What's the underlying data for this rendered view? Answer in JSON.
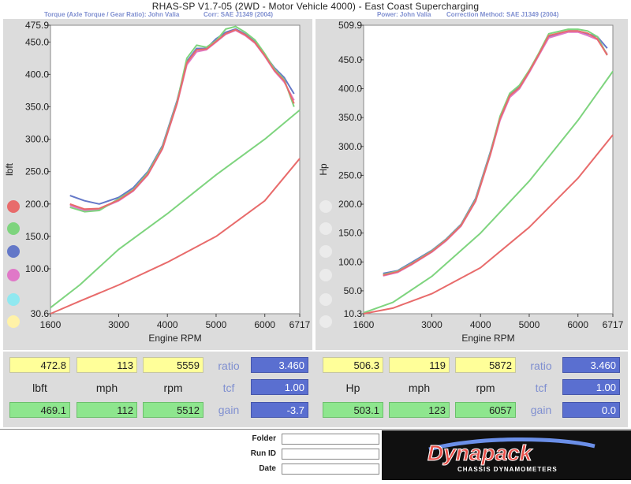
{
  "header": {
    "title": "RHAS-SP V1.7-05   (2WD - Motor Vehicle 4000) - East Coast Supercharging",
    "left_sub1": "Torque (Axle Torque / Gear Ratio): John Valia",
    "left_sub2": "Corr: SAE J1349 (2004)",
    "right_sub1": "Power: John Valia",
    "right_sub2": "Correction Method: SAE J1349 (2004)"
  },
  "colors": {
    "red": "#e86b6b",
    "green": "#7ed47e",
    "blue": "#6478c8",
    "magenta": "#e078c8",
    "cyan": "#90e8f0",
    "yellow": "#fff2a8",
    "panel_bg": "#dcdcdc"
  },
  "legend_dots_left": [
    "red",
    "green",
    "blue",
    "magenta",
    "cyan",
    "yellow"
  ],
  "chart_data": [
    {
      "type": "line",
      "xlabel": "Engine RPM",
      "ylabel": "lbft",
      "xlim": [
        1600,
        6717
      ],
      "ylim": [
        30.6,
        475.9
      ],
      "x_ticks": [
        "1600",
        "3000",
        "4000",
        "5000",
        "6000",
        "6717"
      ],
      "x_tick_values": [
        1600,
        3000,
        4000,
        5000,
        6000,
        6717
      ],
      "y_ticks": [
        "30.6",
        "100.0",
        "150.0",
        "200.0",
        "250.0",
        "300.0",
        "350.0",
        "400.0",
        "450.0",
        "475.9"
      ],
      "y_tick_values": [
        30.6,
        100,
        150,
        200,
        250,
        300,
        350,
        400,
        450,
        475.9
      ],
      "series": [
        {
          "color": "blue",
          "x": [
            2000,
            2300,
            2600,
            3000,
            3300,
            3600,
            3900,
            4200,
            4400,
            4600,
            4800,
            5000,
            5200,
            5400,
            5600,
            5800,
            6000,
            6200,
            6400,
            6600
          ],
          "y": [
            213,
            205,
            200,
            210,
            225,
            250,
            290,
            360,
            420,
            440,
            440,
            455,
            465,
            470,
            462,
            450,
            430,
            410,
            395,
            370
          ]
        },
        {
          "color": "magenta",
          "x": [
            2000,
            2300,
            2600,
            3000,
            3300,
            3600,
            3900,
            4200,
            4400,
            4600,
            4800,
            5000,
            5200,
            5400,
            5600,
            5800,
            6000,
            6200,
            6400,
            6600
          ],
          "y": [
            198,
            190,
            192,
            205,
            220,
            245,
            285,
            355,
            415,
            435,
            438,
            450,
            462,
            468,
            460,
            448,
            428,
            405,
            388,
            360
          ]
        },
        {
          "color": "green",
          "x": [
            2000,
            2300,
            2600,
            3000,
            3300,
            3600,
            3900,
            4200,
            4400,
            4600,
            4800,
            5000,
            5200,
            5400,
            5600,
            5800,
            6000,
            6200,
            6400,
            6600
          ],
          "y": [
            195,
            188,
            190,
            208,
            222,
            248,
            288,
            358,
            425,
            445,
            442,
            452,
            470,
            474,
            465,
            453,
            432,
            408,
            392,
            350
          ]
        },
        {
          "color": "red",
          "x": [
            2000,
            2300,
            2600,
            3000,
            3300,
            3600,
            3900,
            4200,
            4400,
            4600,
            4800,
            5000,
            5200,
            5400,
            5600,
            5800,
            6000,
            6200,
            6400,
            6600
          ],
          "y": [
            200,
            192,
            193,
            206,
            221,
            246,
            286,
            356,
            418,
            438,
            439,
            451,
            463,
            469,
            461,
            449,
            429,
            406,
            390,
            355
          ]
        },
        {
          "color": "green",
          "x": [
            1600,
            2200,
            3000,
            4000,
            5000,
            6000,
            6717
          ],
          "y": [
            40,
            75,
            130,
            185,
            245,
            300,
            345
          ]
        },
        {
          "color": "red",
          "x": [
            1600,
            2200,
            3000,
            4000,
            5000,
            6000,
            6717
          ],
          "y": [
            30.6,
            50,
            75,
            110,
            150,
            205,
            270
          ]
        }
      ]
    },
    {
      "type": "line",
      "xlabel": "Engine RPM",
      "ylabel": "Hp",
      "xlim": [
        1600,
        6717
      ],
      "ylim": [
        10.3,
        509.9
      ],
      "x_ticks": [
        "1600",
        "3000",
        "4000",
        "5000",
        "6000",
        "6717"
      ],
      "x_tick_values": [
        1600,
        3000,
        4000,
        5000,
        6000,
        6717
      ],
      "y_ticks": [
        "10.3",
        "50.0",
        "100.0",
        "150.0",
        "200.0",
        "250.0",
        "300.0",
        "350.0",
        "400.0",
        "450.0",
        "509.9"
      ],
      "y_tick_values": [
        10.3,
        50,
        100,
        150,
        200,
        250,
        300,
        350,
        400,
        450,
        509.9
      ],
      "series": [
        {
          "color": "blue",
          "x": [
            2000,
            2300,
            2600,
            3000,
            3300,
            3600,
            3900,
            4200,
            4400,
            4600,
            4800,
            5000,
            5200,
            5400,
            5600,
            5800,
            6000,
            6200,
            6400,
            6600
          ],
          "y": [
            80,
            85,
            100,
            120,
            140,
            165,
            210,
            290,
            350,
            390,
            405,
            430,
            460,
            490,
            495,
            500,
            500,
            495,
            490,
            470
          ]
        },
        {
          "color": "magenta",
          "x": [
            2000,
            2300,
            2600,
            3000,
            3300,
            3600,
            3900,
            4200,
            4400,
            4600,
            4800,
            5000,
            5200,
            5400,
            5600,
            5800,
            6000,
            6200,
            6400,
            6600
          ],
          "y": [
            76,
            82,
            96,
            117,
            137,
            162,
            205,
            285,
            345,
            385,
            400,
            428,
            458,
            488,
            493,
            498,
            498,
            492,
            485,
            460
          ]
        },
        {
          "color": "green",
          "x": [
            2000,
            2300,
            2600,
            3000,
            3300,
            3600,
            3900,
            4200,
            4400,
            4600,
            4800,
            5000,
            5200,
            5400,
            5600,
            5800,
            6000,
            6200,
            6400,
            6600
          ],
          "y": [
            78,
            84,
            98,
            119,
            139,
            164,
            208,
            288,
            352,
            392,
            406,
            432,
            462,
            495,
            499,
            503,
            503,
            500,
            490,
            458
          ]
        },
        {
          "color": "red",
          "x": [
            2000,
            2300,
            2600,
            3000,
            3300,
            3600,
            3900,
            4200,
            4400,
            4600,
            4800,
            5000,
            5200,
            5400,
            5600,
            5800,
            6000,
            6200,
            6400,
            6600
          ],
          "y": [
            77,
            83,
            97,
            118,
            138,
            163,
            206,
            286,
            348,
            388,
            402,
            430,
            460,
            492,
            496,
            500,
            500,
            496,
            486,
            458
          ]
        },
        {
          "color": "green",
          "x": [
            1600,
            2200,
            3000,
            4000,
            5000,
            6000,
            6717
          ],
          "y": [
            12,
            30,
            75,
            150,
            240,
            345,
            430
          ]
        },
        {
          "color": "red",
          "x": [
            1600,
            2200,
            3000,
            4000,
            5000,
            6000,
            6717
          ],
          "y": [
            10.3,
            20,
            45,
            90,
            160,
            245,
            320
          ]
        }
      ]
    }
  ],
  "left_readout": {
    "max_values": [
      "472.8",
      "113",
      "5559"
    ],
    "labels": [
      "lbft",
      "mph",
      "rpm"
    ],
    "min_values": [
      "469.1",
      "112",
      "5512"
    ],
    "side_labels": [
      "ratio",
      "tcf",
      "gain"
    ],
    "side_values": [
      "3.460",
      "1.00",
      "-3.7"
    ]
  },
  "right_readout": {
    "max_values": [
      "506.3",
      "119",
      "5872"
    ],
    "labels": [
      "Hp",
      "mph",
      "rpm"
    ],
    "min_values": [
      "503.1",
      "123",
      "6057"
    ],
    "side_labels": [
      "ratio",
      "tcf",
      "gain"
    ],
    "side_values": [
      "3.460",
      "1.00",
      "0.0"
    ]
  },
  "footer": {
    "folder_label": "Folder",
    "runid_label": "Run ID",
    "date_label": "Date",
    "logo_text": "Dynapack",
    "logo_sub": "CHASSIS DYNAMOMETERS"
  }
}
